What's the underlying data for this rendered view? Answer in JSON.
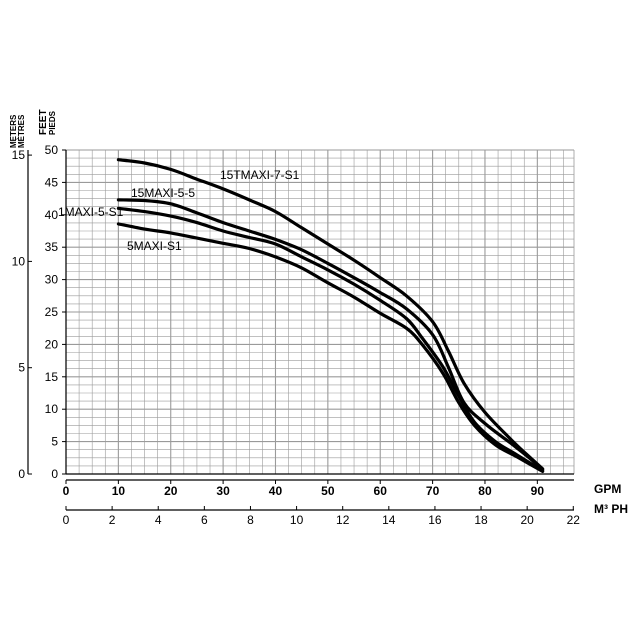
{
  "chart_data": {
    "type": "line",
    "x_units": {
      "primary": "GPM",
      "secondary": "M³ PH"
    },
    "y_units": {
      "left": [
        "METERS",
        "MÈTRES"
      ],
      "right": [
        "FEET",
        "PIEDS"
      ]
    },
    "x_ticks_gpm": [
      "0",
      "10",
      "20",
      "30",
      "40",
      "50",
      "60",
      "70",
      "80",
      "90"
    ],
    "x_ticks_m3ph": [
      "0",
      "2",
      "4",
      "6",
      "8",
      "10",
      "12",
      "14",
      "16",
      "18",
      "20",
      "22"
    ],
    "y_ticks_feet": [
      "0",
      "5",
      "10",
      "15",
      "20",
      "25",
      "30",
      "35",
      "40",
      "45",
      "50"
    ],
    "y_ticks_meters": [
      "0",
      "5",
      "10",
      "15"
    ],
    "xlim_gpm": [
      0,
      97
    ],
    "ylim_feet": [
      0,
      50
    ],
    "grid": true,
    "series": [
      {
        "name": "15TMAXI-7-S1",
        "points": [
          [
            10,
            48.5
          ],
          [
            15,
            48
          ],
          [
            20,
            47
          ],
          [
            25,
            45.5
          ],
          [
            30,
            44
          ],
          [
            35,
            42.3
          ],
          [
            40,
            40.5
          ],
          [
            45,
            38
          ],
          [
            50,
            35.5
          ],
          [
            55,
            33
          ],
          [
            60,
            30.3
          ],
          [
            65,
            27.5
          ],
          [
            70,
            23.5
          ],
          [
            73,
            19
          ],
          [
            76,
            14
          ],
          [
            80,
            9.5
          ],
          [
            85,
            5.3
          ],
          [
            88,
            3
          ],
          [
            91,
            0.8
          ]
        ]
      },
      {
        "name": "15MAXI-5-5",
        "points": [
          [
            10,
            42.3
          ],
          [
            15,
            42.2
          ],
          [
            20,
            41.7
          ],
          [
            25,
            40.3
          ],
          [
            30,
            38.8
          ],
          [
            35,
            37.5
          ],
          [
            40,
            36.2
          ],
          [
            45,
            34.6
          ],
          [
            50,
            32.5
          ],
          [
            55,
            30.3
          ],
          [
            60,
            28
          ],
          [
            65,
            25.5
          ],
          [
            70,
            21.5
          ],
          [
            73,
            16.5
          ],
          [
            76,
            11
          ],
          [
            80,
            7.8
          ],
          [
            85,
            4.7
          ],
          [
            88,
            2.8
          ],
          [
            91,
            0.7
          ]
        ]
      },
      {
        "name": "1MAXI-5-S1",
        "points": [
          [
            10,
            41
          ],
          [
            15,
            40.5
          ],
          [
            20,
            39.8
          ],
          [
            25,
            38.8
          ],
          [
            30,
            37.5
          ],
          [
            35,
            36.5
          ],
          [
            40,
            35.5
          ],
          [
            45,
            33.5
          ],
          [
            50,
            31.5
          ],
          [
            55,
            29.3
          ],
          [
            60,
            26.8
          ],
          [
            65,
            24
          ],
          [
            68,
            21
          ],
          [
            72,
            16.5
          ],
          [
            75,
            12
          ],
          [
            78,
            8
          ],
          [
            82,
            5
          ],
          [
            86,
            3
          ],
          [
            91,
            0.5
          ]
        ]
      },
      {
        "name": "5MAXI-S1",
        "points": [
          [
            10,
            38.6
          ],
          [
            15,
            37.8
          ],
          [
            20,
            37.2
          ],
          [
            25,
            36.4
          ],
          [
            30,
            35.6
          ],
          [
            35,
            34.8
          ],
          [
            40,
            33.5
          ],
          [
            45,
            31.8
          ],
          [
            50,
            29.5
          ],
          [
            55,
            27.3
          ],
          [
            60,
            24.8
          ],
          [
            65,
            22.5
          ],
          [
            68,
            20
          ],
          [
            72,
            15.5
          ],
          [
            75,
            11
          ],
          [
            78,
            7.5
          ],
          [
            82,
            4.5
          ],
          [
            86,
            2.7
          ],
          [
            91,
            0.4
          ]
        ]
      }
    ]
  },
  "labels": {
    "s1": "15TMAXI-7-S1",
    "s2": "15MAXI-5-5",
    "s3": "1MAXI-5-S1",
    "s4": "5MAXI-S1"
  }
}
